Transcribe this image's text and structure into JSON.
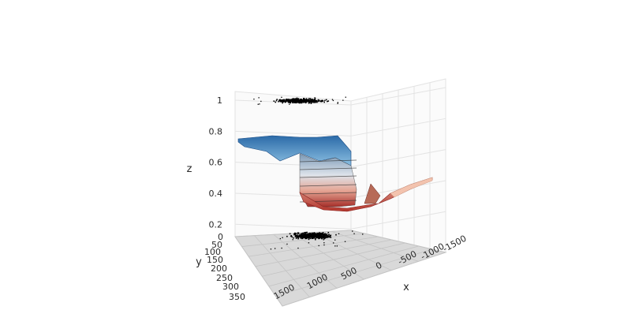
{
  "chart_data": {
    "type": "surface3d",
    "colorscale": "RdBu",
    "axes": {
      "x": {
        "title": "x",
        "ticks": [
          "1500",
          "1000",
          "500",
          "0",
          "-500",
          "-1000",
          "-1500"
        ],
        "range": [
          1500,
          -1500
        ]
      },
      "y": {
        "title": "y",
        "ticks": [
          "0",
          "50",
          "100",
          "150",
          "200",
          "250",
          "300",
          "350"
        ],
        "range": [
          0,
          350
        ]
      },
      "z": {
        "title": "z",
        "ticks": [
          "0.2",
          "0.4",
          "0.6",
          "0.8",
          "1"
        ],
        "range": [
          0.15,
          1.0
        ]
      }
    },
    "grid": true,
    "surface_profile": {
      "x": [
        -600,
        -300,
        0,
        200,
        380,
        520,
        700,
        900,
        1100,
        1400
      ],
      "z": [
        0.68,
        0.72,
        0.72,
        0.7,
        0.72,
        0.62,
        0.26,
        0.21,
        0.25,
        0.38
      ]
    },
    "scatter_top": {
      "z": 1.0,
      "description": "projected points at z = 1"
    },
    "scatter_floor": {
      "z": 0,
      "description": "projected points on floor"
    },
    "colors": {
      "high": "#1f5fa0",
      "mid": "#f2f2f2",
      "low": "#c0392b",
      "floor": "#d9d9d9",
      "grid": "#e3e3e3"
    }
  }
}
